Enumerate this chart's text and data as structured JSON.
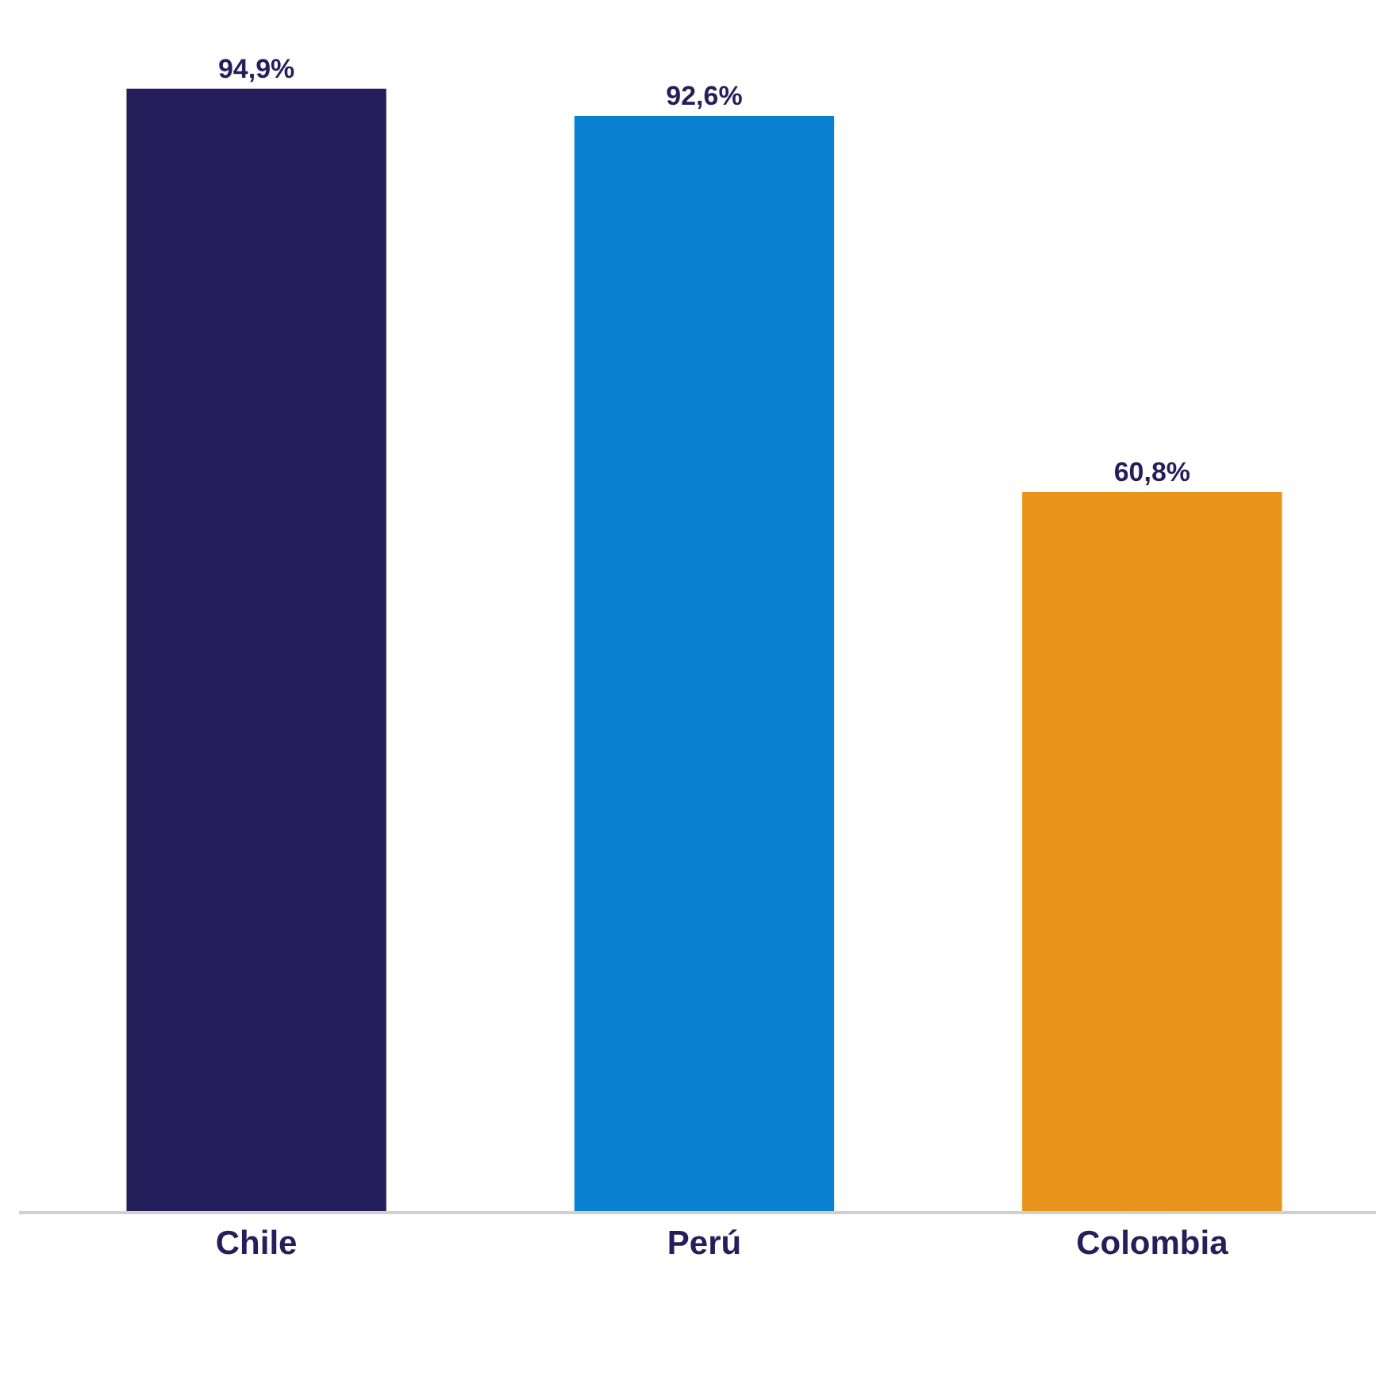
{
  "chart_data": {
    "type": "bar",
    "categories": [
      "Chile",
      "Perú",
      "Colombia"
    ],
    "values": [
      94.9,
      92.6,
      60.8
    ],
    "colors": [
      "#241f5a",
      "#0a80d0",
      "#e89319"
    ],
    "value_labels": [
      "94,9%",
      "92,6%",
      "60,8%"
    ],
    "tick_labels": "x"
  }
}
